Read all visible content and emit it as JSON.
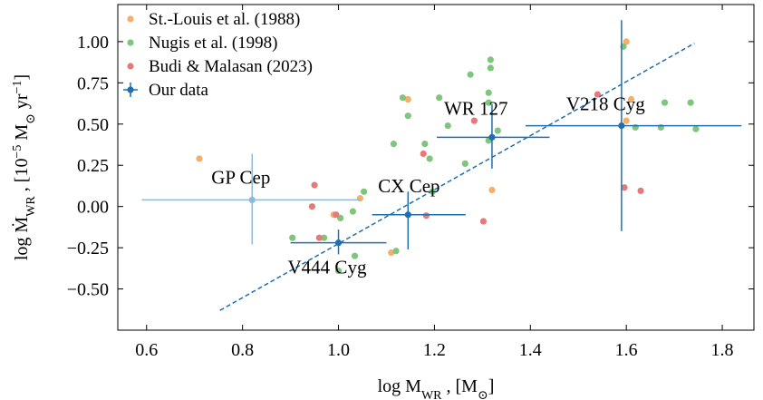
{
  "chart_data": {
    "type": "scatter",
    "x_label": [
      {
        "text": "log M"
      },
      {
        "text": "WR",
        "sub": true
      },
      {
        "text": " , [M"
      },
      {
        "text": "⊙",
        "sub": true
      },
      {
        "text": "]"
      }
    ],
    "y_label": [
      {
        "text": "log Ṁ"
      },
      {
        "text": "WR",
        "sub": true
      },
      {
        "text": " , [10"
      },
      {
        "text": "−5",
        "sup": true
      },
      {
        "text": " M"
      },
      {
        "text": "⊙",
        "sub": true
      },
      {
        "text": " yr"
      },
      {
        "text": "−1",
        "sup": true
      },
      {
        "text": "]"
      }
    ],
    "xlim": [
      0.54,
      1.866
    ],
    "ylim": [
      -0.75,
      1.225
    ],
    "xticks": [
      0.6,
      0.8,
      {
        "value": 1.0,
        "label": "1.0"
      },
      1.2,
      1.4,
      1.6,
      1.8
    ],
    "yticks": [
      {
        "value": -0.5,
        "label": "−0.50"
      },
      {
        "value": -0.25,
        "label": "−0.25"
      },
      {
        "value": 0,
        "label": "0.00"
      },
      {
        "value": 0.25,
        "label": "0.25"
      },
      {
        "value": 0.5,
        "label": "0.50"
      },
      {
        "value": 0.75,
        "label": "0.75"
      },
      {
        "value": 1.0,
        "label": "1.00"
      }
    ],
    "legend": "upper left",
    "series": [
      {
        "name": "St.-Louis et al. (1988)",
        "color": "#f7ae66",
        "x": [
          0.71,
          0.99,
          1.045,
          1.11,
          1.145,
          1.32,
          1.6,
          1.6,
          1.61
        ],
        "y": [
          0.29,
          -0.05,
          0.05,
          -0.28,
          0.65,
          0.1,
          1.0,
          0.52,
          0.65
        ]
      },
      {
        "name": "Nugis et al. (1998)",
        "color": "#7dc67b",
        "x": [
          0.904,
          0.97,
          1.004,
          1.034,
          1.0,
          1.03,
          1.053,
          1.12,
          1.115,
          1.134,
          1.145,
          1.18,
          1.19,
          1.196,
          1.21,
          1.228,
          1.264,
          1.275,
          1.317,
          1.317,
          1.313,
          1.313,
          1.332,
          1.313,
          1.594,
          1.619,
          1.672,
          1.68,
          1.745,
          1.734
        ],
        "y": [
          -0.19,
          -0.19,
          -0.07,
          -0.3,
          -0.39,
          -0.03,
          0.09,
          -0.27,
          0.38,
          0.66,
          0.55,
          0.38,
          0.29,
          0.09,
          0.66,
          0.49,
          0.26,
          0.8,
          0.89,
          0.84,
          0.69,
          0.4,
          0.46,
          0.63,
          0.97,
          0.48,
          0.48,
          0.63,
          0.47,
          0.63
        ]
      },
      {
        "name": "Budi & Malasan (2023)",
        "color": "#e57a78",
        "x": [
          0.95,
          0.945,
          0.96,
          0.995,
          1.177,
          1.183,
          1.283,
          1.302,
          1.54,
          1.596,
          1.63
        ],
        "y": [
          0.13,
          0.0,
          -0.19,
          -0.05,
          0.32,
          -0.055,
          0.52,
          -0.09,
          0.68,
          0.115,
          0.095
        ]
      },
      {
        "name": "Our data",
        "color": "#1f6fae",
        "faint_color": "#8fb8d8",
        "labels": [
          "GP Cep",
          "V444 Cyg",
          "CX Cep",
          "WR 127",
          "V218 Cyg"
        ],
        "x": [
          0.82,
          1.0,
          1.145,
          1.32,
          1.59
        ],
        "y": [
          0.04,
          -0.22,
          -0.05,
          0.42,
          0.49
        ],
        "xerr": [
          [
            0.23,
            0.225
          ],
          [
            0.1,
            0.1
          ],
          [
            0.075,
            0.12
          ],
          [
            0.115,
            0.12
          ],
          [
            0.2,
            0.25
          ]
        ],
        "yerr": [
          [
            0.27,
            0.28
          ],
          [
            0.07,
            0.08
          ],
          [
            0.21,
            0.14
          ],
          [
            0.19,
            0.2
          ],
          [
            0.64,
            0.64
          ]
        ]
      }
    ],
    "fit": {
      "color": "#1f6fae",
      "x": [
        0.753,
        1.742
      ],
      "y": [
        -0.63,
        0.99
      ]
    }
  }
}
